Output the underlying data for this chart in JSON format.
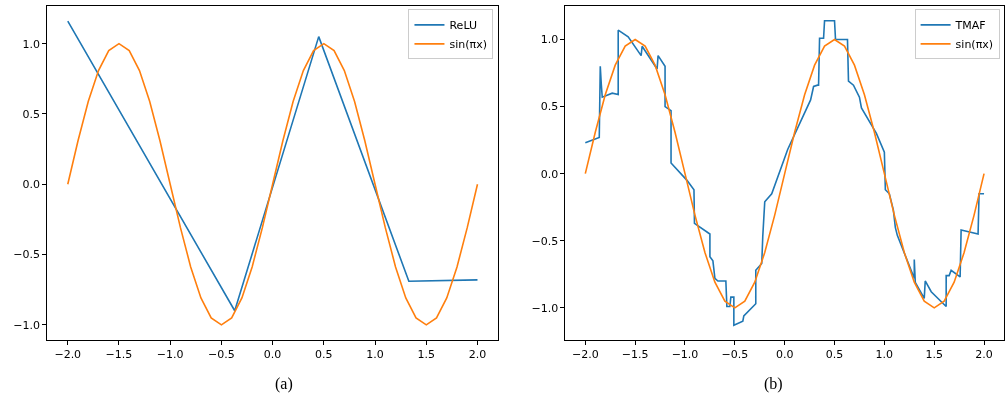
{
  "chart_data": [
    {
      "type": "line",
      "xlim": [
        -2.2,
        2.2
      ],
      "ylim": [
        -1.108,
        1.268
      ],
      "xticks": [
        {
          "value": -2,
          "label": "−2.0"
        },
        {
          "value": -1.5,
          "label": "−1.5"
        },
        {
          "value": -1,
          "label": "−1.0"
        },
        {
          "value": -0.5,
          "label": "−0.5"
        },
        {
          "value": 0,
          "label": "0.0"
        },
        {
          "value": 0.5,
          "label": "0.5"
        },
        {
          "value": 1,
          "label": "1.0"
        },
        {
          "value": 1.5,
          "label": "1.5"
        },
        {
          "value": 2,
          "label": "2.0"
        }
      ],
      "yticks": [
        {
          "value": -1,
          "label": "−1.0"
        },
        {
          "value": -0.5,
          "label": "−0.5"
        },
        {
          "value": 0,
          "label": "0.0"
        },
        {
          "value": 0.5,
          "label": "0.5"
        },
        {
          "value": 1,
          "label": "1.0"
        }
      ],
      "legend": "top right",
      "annotations": [
        "(a)"
      ],
      "series": [
        {
          "name": "ReLU",
          "color": "#1f77b4",
          "x": [
            -2,
            -0.37,
            0.45,
            1.33,
            2
          ],
          "values": [
            1.16,
            -0.9,
            1.05,
            -0.69,
            -0.68
          ]
        },
        {
          "name": "sin(πx)",
          "color": "#ff7f0e",
          "x": [
            -2,
            -1.9,
            -1.8,
            -1.7,
            -1.6,
            -1.5,
            -1.4,
            -1.3,
            -1.2,
            -1.1,
            -1,
            -0.9,
            -0.8,
            -0.7,
            -0.6,
            -0.5,
            -0.4,
            -0.3,
            -0.2,
            -0.1,
            0,
            0.1,
            0.2,
            0.3,
            0.4,
            0.5,
            0.6,
            0.7,
            0.8,
            0.9,
            1,
            1.1,
            1.2,
            1.3,
            1.4,
            1.5,
            1.6,
            1.7,
            1.8,
            1.9,
            2
          ],
          "values": [
            0,
            0.309,
            0.588,
            0.809,
            0.951,
            1,
            0.951,
            0.809,
            0.588,
            0.309,
            0,
            -0.309,
            -0.588,
            -0.809,
            -0.951,
            -1,
            -0.951,
            -0.809,
            -0.588,
            -0.309,
            0,
            0.309,
            0.588,
            0.809,
            0.951,
            1,
            0.951,
            0.809,
            0.588,
            0.309,
            0,
            -0.309,
            -0.588,
            -0.809,
            -0.951,
            -1,
            -0.951,
            -0.809,
            -0.588,
            -0.309,
            0
          ]
        }
      ]
    },
    {
      "type": "line",
      "xlim": [
        -2.2,
        2.2
      ],
      "ylim": [
        -1.24,
        1.25
      ],
      "xticks": [
        {
          "value": -2,
          "label": "−2.0"
        },
        {
          "value": -1.5,
          "label": "−1.5"
        },
        {
          "value": -1,
          "label": "−1.0"
        },
        {
          "value": -0.5,
          "label": "−0.5"
        },
        {
          "value": 0,
          "label": "0.0"
        },
        {
          "value": 0.5,
          "label": "0.5"
        },
        {
          "value": 1,
          "label": "1.0"
        },
        {
          "value": 1.5,
          "label": "1.5"
        },
        {
          "value": 2,
          "label": "2.0"
        }
      ],
      "yticks": [
        {
          "value": -1,
          "label": "−1.0"
        },
        {
          "value": -0.5,
          "label": "−0.5"
        },
        {
          "value": 0,
          "label": "0.0"
        },
        {
          "value": 0.5,
          "label": "0.5"
        },
        {
          "value": 1,
          "label": "1.0"
        }
      ],
      "legend": "top right",
      "annotations": [
        "(b)"
      ],
      "series": [
        {
          "name": "TMAF",
          "color": "#1f77b4",
          "x": [
            -2,
            -1.86,
            -1.85,
            -1.84,
            -1.83,
            -1.73,
            -1.67,
            -1.67,
            -1.57,
            -1.44,
            -1.43,
            -1.28,
            -1.27,
            -1.2,
            -1.2,
            -1.14,
            -1.14,
            -0.98,
            -0.91,
            -0.905,
            -0.75,
            -0.75,
            -0.72,
            -0.7,
            -0.67,
            -0.59,
            -0.58,
            -0.55,
            -0.54,
            -0.51,
            -0.51,
            -0.42,
            -0.41,
            -0.29,
            -0.29,
            -0.23,
            -0.22,
            -0.2,
            -0.13,
            0.03,
            0.26,
            0.29,
            0.33,
            0.34,
            0.35,
            0.39,
            0.4,
            0.5,
            0.51,
            0.63,
            0.64,
            0.69,
            0.75,
            0.77,
            0.92,
            1.0,
            1.01,
            1.05,
            1.09,
            1.11,
            1.13,
            1.3,
            1.3,
            1.31,
            1.4,
            1.41,
            1.47,
            1.62,
            1.62,
            1.65,
            1.67,
            1.76,
            1.77,
            1.94,
            1.95,
            2.0
          ],
          "values": [
            0.23,
            0.27,
            0.8,
            0.67,
            0.57,
            0.6,
            0.59,
            1.07,
            1.02,
            0.88,
            0.95,
            0.78,
            0.88,
            0.8,
            0.5,
            0.47,
            0.08,
            -0.05,
            -0.12,
            -0.37,
            -0.45,
            -0.62,
            -0.65,
            -0.78,
            -0.8,
            -0.8,
            -0.99,
            -0.99,
            -0.92,
            -0.92,
            -1.13,
            -1.1,
            -1.06,
            -0.97,
            -0.72,
            -0.67,
            -0.47,
            -0.21,
            -0.15,
            0.18,
            0.55,
            0.65,
            0.66,
            0.66,
            1.01,
            1.01,
            1.14,
            1.14,
            1.0,
            1.0,
            0.69,
            0.66,
            0.57,
            0.49,
            0.3,
            0.16,
            -0.12,
            -0.15,
            -0.27,
            -0.4,
            -0.46,
            -0.78,
            -0.64,
            -0.81,
            -0.93,
            -0.8,
            -0.88,
            -0.99,
            -0.76,
            -0.76,
            -0.72,
            -0.77,
            -0.42,
            -0.45,
            -0.15,
            -0.15
          ]
        },
        {
          "name": "sin(πx)",
          "color": "#ff7f0e",
          "x": [
            -2,
            -1.9,
            -1.8,
            -1.7,
            -1.6,
            -1.5,
            -1.4,
            -1.3,
            -1.2,
            -1.1,
            -1,
            -0.9,
            -0.8,
            -0.7,
            -0.6,
            -0.5,
            -0.4,
            -0.3,
            -0.2,
            -0.1,
            0,
            0.1,
            0.2,
            0.3,
            0.4,
            0.5,
            0.6,
            0.7,
            0.8,
            0.9,
            1,
            1.1,
            1.2,
            1.3,
            1.4,
            1.5,
            1.6,
            1.7,
            1.8,
            1.9,
            2
          ],
          "values": [
            0,
            0.309,
            0.588,
            0.809,
            0.951,
            1,
            0.951,
            0.809,
            0.588,
            0.309,
            0,
            -0.309,
            -0.588,
            -0.809,
            -0.951,
            -1,
            -0.951,
            -0.809,
            -0.588,
            -0.309,
            0,
            0.309,
            0.588,
            0.809,
            0.951,
            1,
            0.951,
            0.809,
            0.588,
            0.309,
            0,
            -0.309,
            -0.588,
            -0.809,
            -0.951,
            -1,
            -0.951,
            -0.809,
            -0.588,
            -0.309,
            0
          ]
        }
      ]
    }
  ]
}
